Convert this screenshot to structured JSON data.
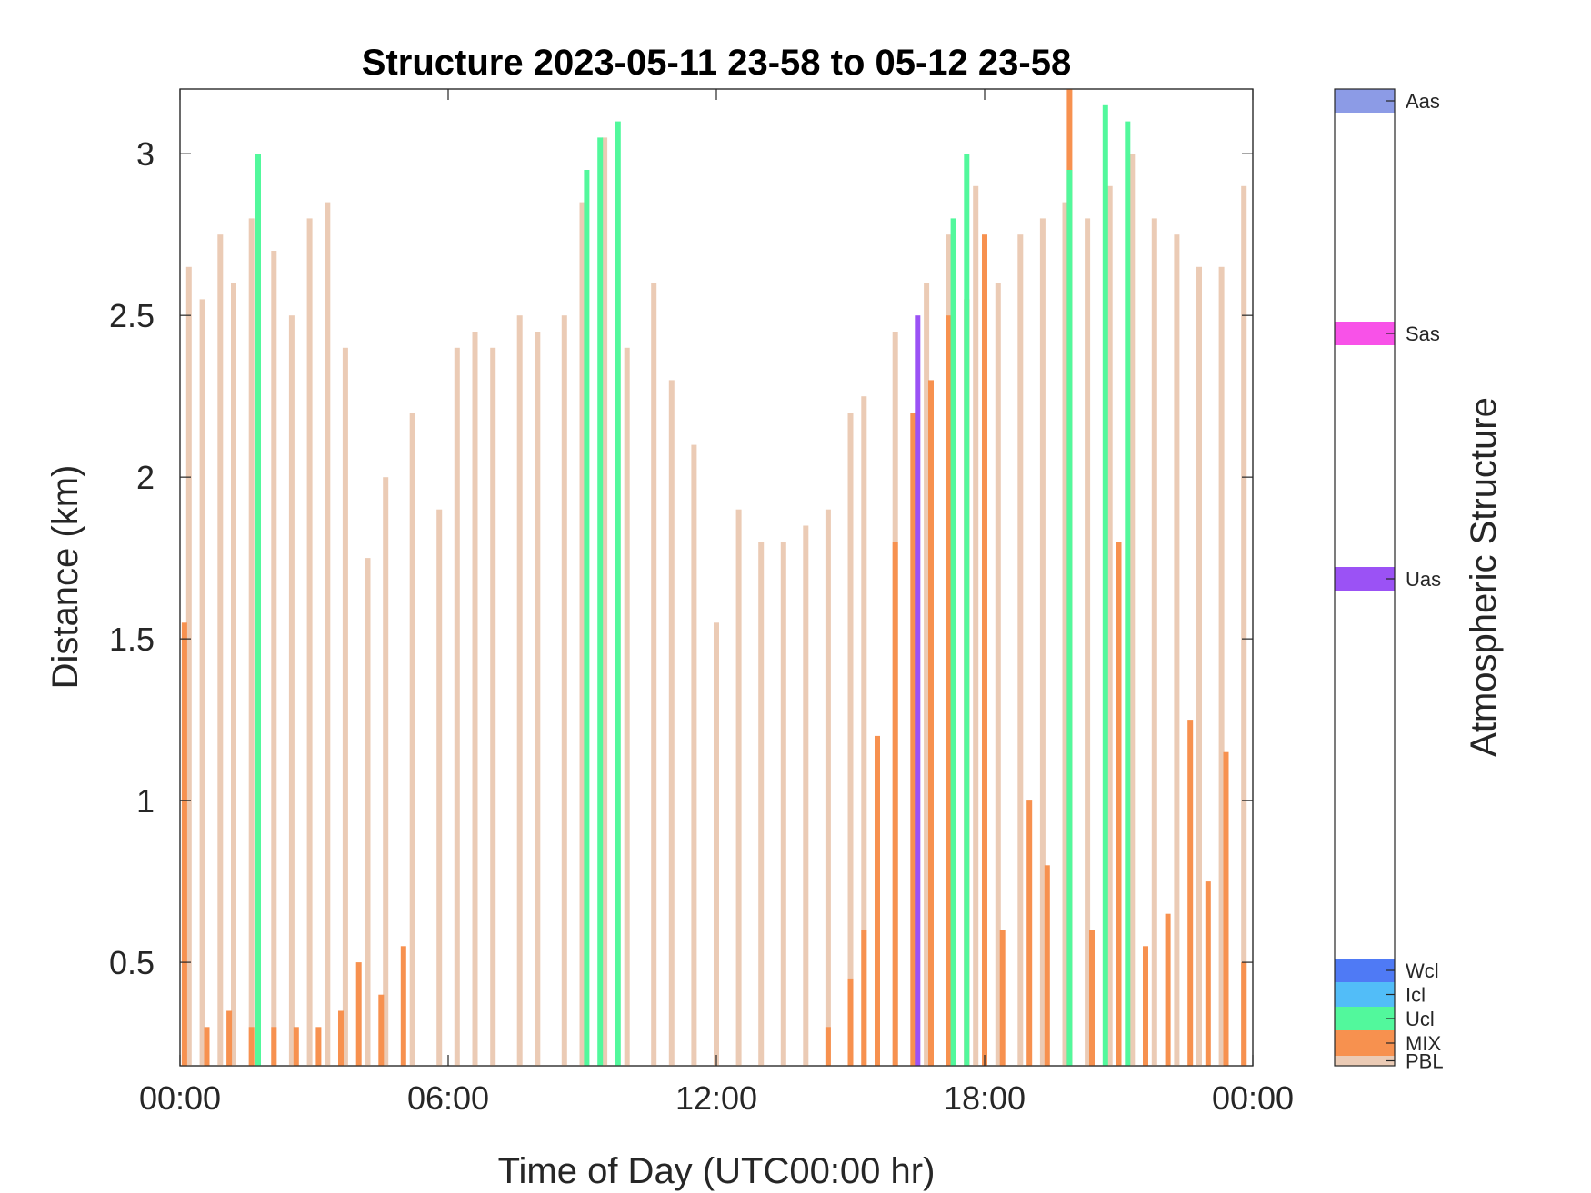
{
  "chart_data": {
    "type": "bar",
    "title": "Structure 2023-05-11 23-58 to 05-12 23-58",
    "xlabel": "Time of Day (UTC00:00 hr)",
    "ylabel": "Distance (km)",
    "colorbar_label": "Atmospheric Structure",
    "x_ticks": [
      {
        "value": 0,
        "label": "00:00"
      },
      {
        "value": 6,
        "label": "06:00"
      },
      {
        "value": 12,
        "label": "12:00"
      },
      {
        "value": 18,
        "label": "18:00"
      },
      {
        "value": 24,
        "label": "00:00"
      }
    ],
    "y_ticks": [
      {
        "value": 0.5,
        "label": "0.5"
      },
      {
        "value": 1,
        "label": "1"
      },
      {
        "value": 1.5,
        "label": "1.5"
      },
      {
        "value": 2,
        "label": "2"
      },
      {
        "value": 2.5,
        "label": "2.5"
      },
      {
        "value": 3,
        "label": "3"
      }
    ],
    "xlim": [
      0,
      24
    ],
    "ylim": [
      0.18,
      3.2
    ],
    "grid": false,
    "legend_position": "colorbar-right",
    "categories": [
      {
        "name": "PBL",
        "color": "#EBCBB5"
      },
      {
        "name": "MIX",
        "color": "#F7914F"
      },
      {
        "name": "Ucl",
        "color": "#52F89C"
      },
      {
        "name": "Icl",
        "color": "#52BDF8"
      },
      {
        "name": "Wcl",
        "color": "#4F7AF5"
      },
      {
        "name": "Uas",
        "color": "#9B52F5"
      },
      {
        "name": "Sas",
        "color": "#F852E8"
      },
      {
        "name": "Aas",
        "color": "#8C9BE6"
      }
    ],
    "series": [
      {
        "category": "PBL",
        "x": [
          0.2,
          0.5,
          0.9,
          1.2,
          1.6,
          2.1,
          2.5,
          2.9,
          3.3,
          3.7,
          4.2,
          4.6,
          5.2,
          5.8,
          6.2,
          6.6,
          7.0,
          7.6,
          8.0,
          8.6,
          9.0,
          9.5,
          10.0,
          10.6,
          11.0,
          11.5,
          12.0,
          12.5,
          13.0,
          13.5,
          14.0,
          14.5,
          15.0,
          15.3,
          16.0,
          16.7,
          17.2,
          17.8,
          18.3,
          18.8,
          19.3,
          19.8,
          20.3,
          20.8,
          21.3,
          21.8,
          22.3,
          22.8,
          23.3,
          23.8
        ],
        "values": [
          2.65,
          2.55,
          2.75,
          2.6,
          2.8,
          2.7,
          2.5,
          2.8,
          2.85,
          2.4,
          1.75,
          2.0,
          2.2,
          1.9,
          2.4,
          2.45,
          2.4,
          2.5,
          2.45,
          2.5,
          2.85,
          3.05,
          2.4,
          2.6,
          2.3,
          2.1,
          1.55,
          1.9,
          1.8,
          1.8,
          1.85,
          1.9,
          2.2,
          2.25,
          2.45,
          2.6,
          2.75,
          2.9,
          2.6,
          2.75,
          2.8,
          2.85,
          2.8,
          2.9,
          3.0,
          2.8,
          2.75,
          2.65,
          2.65,
          2.9
        ]
      },
      {
        "category": "MIX",
        "x": [
          0.1,
          0.6,
          1.1,
          1.6,
          2.1,
          2.6,
          3.1,
          3.6,
          4.0,
          4.5,
          5.0,
          14.5,
          15.0,
          15.3,
          15.6,
          16.0,
          16.4,
          16.8,
          17.2,
          17.6,
          18.0,
          18.4,
          19.0,
          19.4,
          19.9,
          20.4,
          21.0,
          21.6,
          22.1,
          22.6,
          23.0,
          23.4,
          23.8
        ],
        "values": [
          1.55,
          0.3,
          0.35,
          0.3,
          0.3,
          0.3,
          0.3,
          0.35,
          0.5,
          0.4,
          0.55,
          0.3,
          0.45,
          0.6,
          1.2,
          1.8,
          2.2,
          2.3,
          2.5,
          2.55,
          2.75,
          0.6,
          1.0,
          0.8,
          3.2,
          0.6,
          1.8,
          0.55,
          0.65,
          1.25,
          0.75,
          1.15,
          0.5
        ]
      },
      {
        "category": "Ucl",
        "x": [
          1.75,
          9.1,
          9.4,
          9.8,
          17.3,
          17.6,
          19.9,
          20.7,
          21.2
        ],
        "values": [
          3.0,
          2.95,
          3.05,
          3.1,
          2.8,
          3.0,
          2.95,
          3.15,
          3.1
        ]
      },
      {
        "category": "Uas",
        "x": [
          16.5
        ],
        "values": [
          2.5
        ]
      }
    ]
  }
}
